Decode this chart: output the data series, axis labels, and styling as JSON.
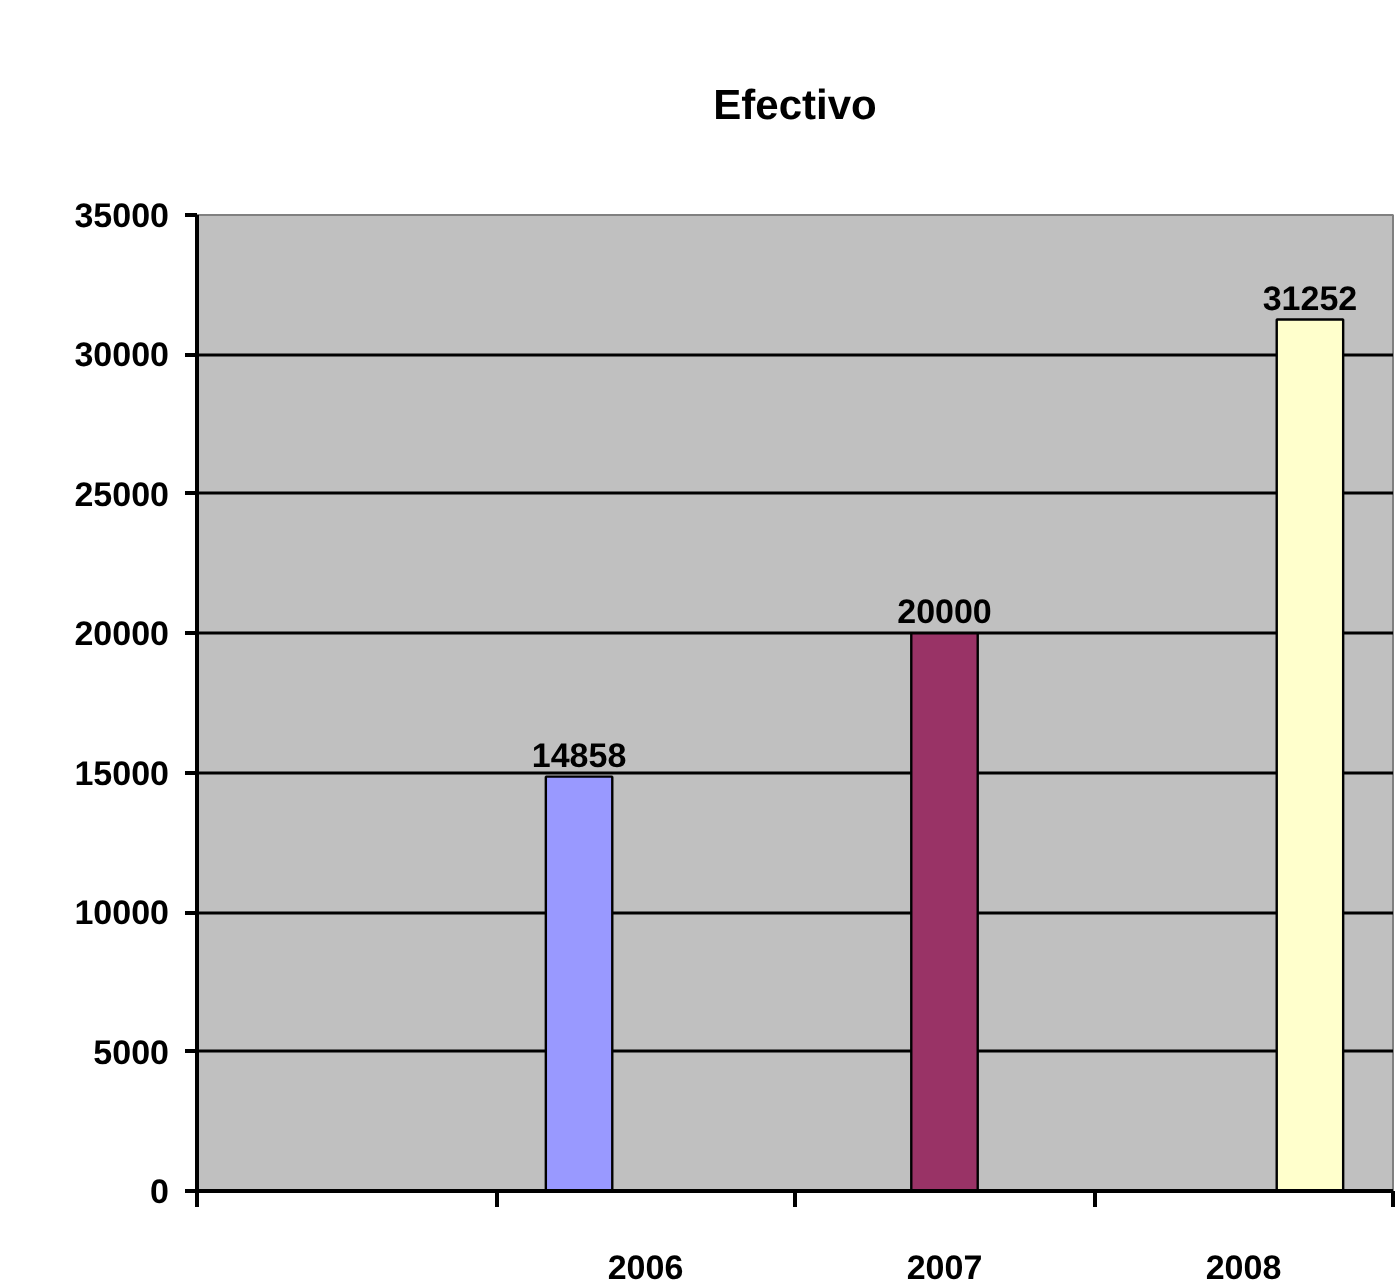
{
  "chart_data": {
    "type": "bar",
    "title": "Efectivo",
    "categories": [
      null,
      "2006",
      "2007",
      "2008"
    ],
    "series": [
      {
        "color": "#9999ff",
        "values": [
          null,
          14858,
          null,
          null
        ]
      },
      {
        "color": "#993366",
        "values": [
          null,
          null,
          20000,
          null
        ]
      },
      {
        "color": "#ffffcc",
        "values": [
          null,
          null,
          null,
          31252
        ]
      }
    ],
    "ylim": [
      0,
      35000
    ],
    "yticks": [
      0,
      5000,
      10000,
      15000,
      20000,
      25000,
      30000,
      35000
    ],
    "grid": "y",
    "data_labels": true
  }
}
